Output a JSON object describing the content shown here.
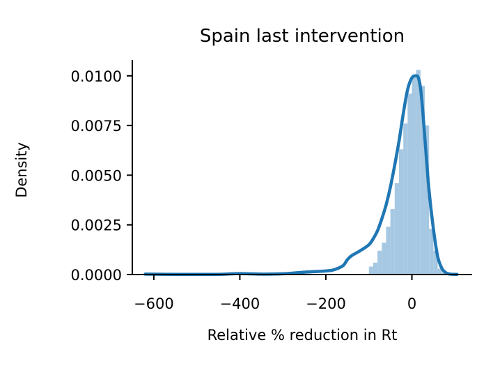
{
  "chart_data": {
    "type": "histogram-kde",
    "title": "Spain last intervention",
    "xlabel": "Relative % reduction in Rt",
    "ylabel": "Density",
    "xlim": [
      -650,
      140
    ],
    "ylim": [
      0,
      0.0108
    ],
    "x_ticks": [
      -600,
      -400,
      -200,
      0
    ],
    "x_tick_labels": [
      "−600",
      "−400",
      "−200",
      "0"
    ],
    "y_ticks": [
      0.0,
      0.0025,
      0.005,
      0.0075,
      0.01
    ],
    "y_tick_labels": [
      "0.0000",
      "0.0025",
      "0.0050",
      "0.0075",
      "0.0100"
    ],
    "grid": false,
    "colors": {
      "hist": "#a6c8e2",
      "kde": "#1f77b4"
    },
    "histogram": {
      "bin_edges": [
        -100,
        -90,
        -80,
        -70,
        -60,
        -50,
        -40,
        -30,
        -20,
        -10,
        0,
        10,
        20,
        30,
        40,
        50,
        60,
        70,
        80
      ],
      "densities": [
        0.0004,
        0.0006,
        0.0012,
        0.0016,
        0.0024,
        0.0033,
        0.0046,
        0.0063,
        0.0076,
        0.0091,
        0.01,
        0.0103,
        0.0095,
        0.0075,
        0.0023,
        0.0012,
        0.0003,
        0.0001
      ]
    },
    "kde": {
      "x": [
        -620,
        -550,
        -450,
        -400,
        -350,
        -300,
        -250,
        -200,
        -180,
        -160,
        -150,
        -140,
        -120,
        -100,
        -90,
        -80,
        -70,
        -60,
        -50,
        -40,
        -30,
        -20,
        -10,
        0,
        10,
        15,
        20,
        25,
        30,
        35,
        40,
        50,
        60,
        70,
        80,
        90,
        105
      ],
      "y": [
        2e-05,
        1e-05,
        1e-05,
        5e-05,
        2e-05,
        4e-05,
        0.00012,
        0.00018,
        0.00025,
        0.00045,
        0.00075,
        0.00095,
        0.0012,
        0.0015,
        0.0018,
        0.0022,
        0.0028,
        0.0035,
        0.0044,
        0.0055,
        0.0067,
        0.0081,
        0.0093,
        0.0099,
        0.01,
        0.0099,
        0.0094,
        0.0083,
        0.0069,
        0.0055,
        0.0042,
        0.0023,
        0.0009,
        0.0003,
        8e-05,
        2e-05,
        1e-05
      ]
    }
  }
}
